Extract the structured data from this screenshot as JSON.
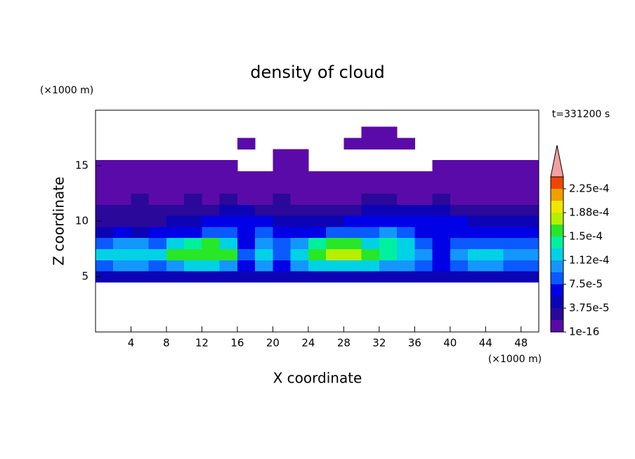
{
  "chart_data": {
    "type": "contour",
    "title": "density of cloud",
    "xlabel": "X coordinate",
    "ylabel": "Z coordinate",
    "x_unit": "(×1000 m)",
    "y_unit": "(×1000 m)",
    "time_label": "t=331200 s",
    "xlim": [
      0,
      50
    ],
    "ylim": [
      0,
      20
    ],
    "xticks": [
      4,
      8,
      12,
      16,
      20,
      24,
      28,
      32,
      36,
      40,
      44,
      48
    ],
    "yticks": [
      5,
      10,
      15
    ],
    "x": [
      1,
      3,
      5,
      7,
      9,
      11,
      13,
      15,
      17,
      19,
      21,
      23,
      25,
      27,
      29,
      31,
      33,
      35,
      37,
      39,
      41,
      43,
      45,
      47,
      49
    ],
    "y": [
      5,
      6,
      7,
      8,
      9,
      10,
      11,
      12,
      13,
      14,
      15,
      16,
      17,
      18
    ],
    "values": [
      [
        4e-05,
        4e-05,
        3.8e-05,
        4e-05,
        4e-05,
        4.2e-05,
        4e-05,
        4e-05,
        3.8e-05,
        4e-05,
        3.8e-05,
        4e-05,
        4e-05,
        4.2e-05,
        4e-05,
        4e-05,
        4e-05,
        4e-05,
        3.8e-05,
        4e-05,
        4e-05,
        4e-05,
        4e-05,
        4e-05,
        3.8e-05
      ],
      [
        9e-05,
        0.0001,
        0.00011,
        9e-05,
        0.00011,
        0.00012,
        0.00012,
        0.0001,
        6e-05,
        0.0001,
        7e-05,
        0.0001,
        0.00012,
        0.00013,
        0.00013,
        0.00012,
        0.00011,
        0.0001,
        8e-05,
        6e-05,
        8e-05,
        0.0001,
        0.0001,
        9e-05,
        8e-05
      ],
      [
        0.00012,
        0.00013,
        0.00013,
        0.00012,
        0.00015,
        0.00016,
        0.000165,
        0.00015,
        8e-05,
        0.00012,
        9e-05,
        0.00013,
        0.00016,
        0.000175,
        0.00017,
        0.00015,
        0.00014,
        0.00013,
        0.0001,
        7e-05,
        0.0001,
        0.00012,
        0.00012,
        0.00011,
        0.0001
      ],
      [
        8e-05,
        0.0001,
        0.00011,
        9e-05,
        0.00012,
        0.000145,
        0.00015,
        0.00013,
        7e-05,
        0.0001,
        8e-05,
        0.00011,
        0.00014,
        0.000155,
        0.00015,
        0.00013,
        0.00014,
        0.00012,
        9e-05,
        6e-05,
        8e-05,
        9e-05,
        9e-05,
        8e-05,
        9e-05
      ],
      [
        5e-05,
        6e-05,
        5e-05,
        6e-05,
        6e-05,
        7e-05,
        8e-05,
        8e-05,
        6e-05,
        8e-05,
        6e-05,
        7e-05,
        7e-05,
        8e-05,
        8e-05,
        9e-05,
        0.0001,
        8e-05,
        7e-05,
        6e-05,
        7e-05,
        7e-05,
        6e-05,
        6e-05,
        7e-05
      ],
      [
        3e-05,
        3e-05,
        2e-05,
        3e-05,
        4e-05,
        5e-05,
        6e-05,
        7e-05,
        7e-05,
        6e-05,
        5e-05,
        5e-05,
        4e-05,
        5e-05,
        6e-05,
        6e-05,
        7e-05,
        7e-05,
        6e-05,
        6e-05,
        6e-05,
        5e-05,
        4e-05,
        5e-05,
        4e-05
      ],
      [
        2.5e-05,
        2e-05,
        2e-05,
        2.5e-05,
        3e-05,
        3e-05,
        3.5e-05,
        4e-05,
        4e-05,
        3.5e-05,
        3e-05,
        3e-05,
        3e-05,
        3e-05,
        3.5e-05,
        4e-05,
        4.5e-05,
        4.5e-05,
        4e-05,
        4e-05,
        3.5e-05,
        3e-05,
        3e-05,
        3e-05,
        2.5e-05
      ],
      [
        1.5e-05,
        1e-05,
        2e-05,
        1.5e-05,
        1e-05,
        2e-05,
        1.5e-05,
        2e-05,
        1e-05,
        1.5e-05,
        2e-05,
        1e-05,
        1.5e-05,
        1e-05,
        1.5e-05,
        2e-05,
        2e-05,
        1.5e-05,
        1e-05,
        2e-05,
        1.5e-05,
        1e-05,
        1.5e-05,
        1e-05,
        1.5e-05
      ],
      [
        1e-05,
        1e-05,
        1e-05,
        1e-05,
        1e-05,
        1e-05,
        1e-05,
        1e-05,
        1e-05,
        1e-05,
        1e-05,
        1e-05,
        1e-05,
        1e-05,
        1e-05,
        1e-05,
        1e-05,
        1e-05,
        1e-05,
        1e-05,
        1e-05,
        1e-05,
        1e-05,
        1e-05,
        1e-05
      ],
      [
        5e-06,
        5e-06,
        5e-06,
        5e-06,
        5e-06,
        5e-06,
        5e-06,
        5e-06,
        5e-06,
        5e-06,
        5e-06,
        5e-06,
        5e-06,
        5e-06,
        5e-06,
        5e-06,
        5e-06,
        5e-06,
        5e-06,
        5e-06,
        5e-06,
        5e-06,
        5e-06,
        5e-06,
        5e-06
      ],
      [
        3e-06,
        3e-06,
        3e-06,
        3e-06,
        3e-06,
        3e-06,
        3e-06,
        3e-06,
        null,
        null,
        2e-06,
        2e-06,
        null,
        null,
        null,
        null,
        null,
        null,
        null,
        2e-06,
        3e-06,
        3e-06,
        3e-06,
        3e-06,
        3e-06
      ],
      [
        null,
        null,
        null,
        null,
        null,
        null,
        null,
        null,
        null,
        null,
        1e-06,
        1e-06,
        null,
        null,
        null,
        null,
        null,
        null,
        null,
        null,
        null,
        null,
        null,
        null,
        null
      ],
      [
        null,
        null,
        null,
        null,
        null,
        null,
        null,
        null,
        1e-06,
        null,
        null,
        null,
        null,
        null,
        1e-06,
        1e-06,
        1e-06,
        1e-06,
        null,
        null,
        null,
        null,
        null,
        null,
        null
      ],
      [
        null,
        null,
        null,
        null,
        null,
        null,
        null,
        null,
        null,
        null,
        null,
        null,
        null,
        null,
        null,
        1e-06,
        1e-06,
        null,
        null,
        null,
        null,
        null,
        null,
        null,
        null
      ]
    ],
    "levels": [
      1e-16,
      1.875e-05,
      3.75e-05,
      5.625e-05,
      7.5e-05,
      9.375e-05,
      0.0001125,
      0.00013125,
      0.00015,
      0.00016875,
      0.0001875,
      0.00020625,
      0.000225,
      0.00024375
    ],
    "colors": [
      "#5a0aa8",
      "#2a089a",
      "#0c04b4",
      "#0000e6",
      "#0a5aff",
      "#1496ff",
      "#00d2e6",
      "#00f0a0",
      "#28e628",
      "#b4f000",
      "#f0e600",
      "#f0a000",
      "#f04600"
    ],
    "over_color": "#f4a0a0",
    "cticks": [
      1e-16,
      {
        "value": 3.75e-05,
        "label": "3.75e-5"
      },
      {
        "value": 7.5e-05,
        "label": "7.5e-5"
      },
      {
        "value": 0.0001125,
        "label": "1.12e-4"
      },
      {
        "value": 0.00015,
        "label": "1.5e-4"
      },
      {
        "value": 0.0001875,
        "label": "1.88e-4"
      },
      {
        "value": 0.000225,
        "label": "2.25e-4"
      }
    ]
  }
}
